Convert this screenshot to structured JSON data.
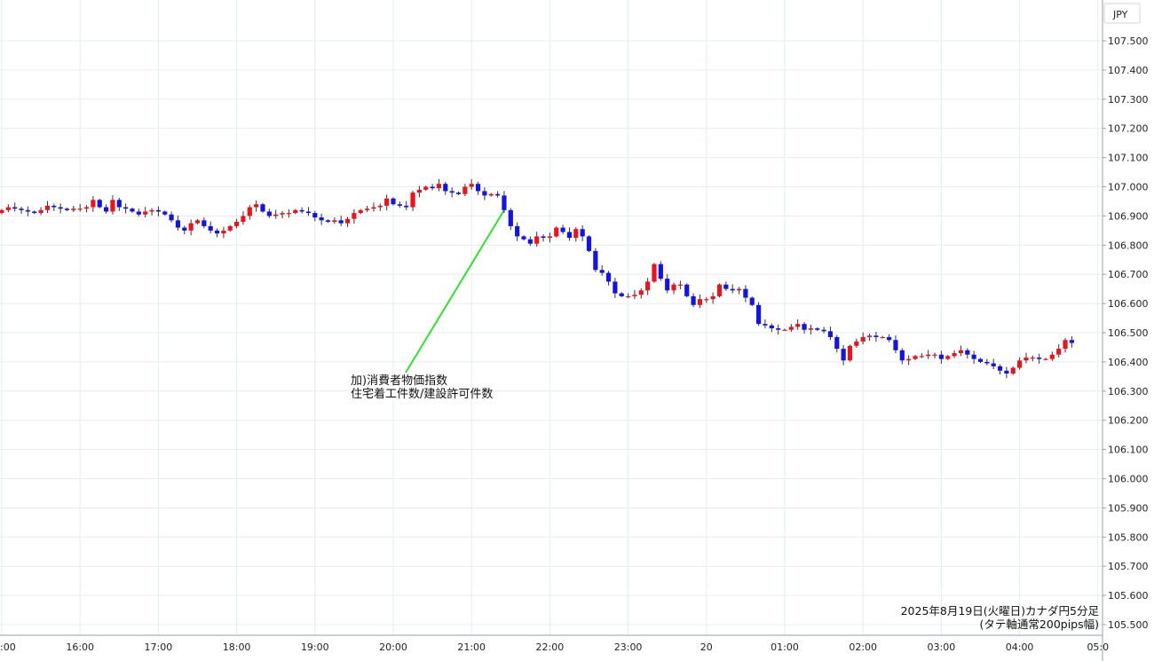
{
  "chart_data": {
    "type": "candlestick",
    "currency_label": "JPY",
    "caption_line1": "2025年8月19日(火曜日)カナダ円5分足",
    "caption_line2": "(タテ軸通常200pips幅)",
    "annotation_line1": "加)消費者物価指数",
    "annotation_line2": "住宅着工件数/建設許可件数",
    "annotation_time_index": 77,
    "annotation_price": 106.92,
    "ylim": [
      105.48,
      107.62
    ],
    "y_ticks": [
      "107.500",
      "107.400",
      "107.300",
      "107.200",
      "107.100",
      "107.000",
      "106.900",
      "106.800",
      "106.700",
      "106.600",
      "106.500",
      "106.400",
      "106.300",
      "106.200",
      "106.100",
      "106.000",
      "105.900",
      "105.800",
      "105.700",
      "105.600",
      "105.500"
    ],
    "x_tick_labels": [
      ":00",
      "16:00",
      "17:00",
      "18:00",
      "19:00",
      "20:00",
      "21:00",
      "22:00",
      "23:00",
      "20",
      "01:00",
      "02:00",
      "03:00",
      "04:00",
      "05:0"
    ],
    "x_tick_index": [
      0,
      12,
      24,
      36,
      48,
      60,
      72,
      84,
      96,
      108,
      120,
      132,
      144,
      156,
      168
    ],
    "up_color": "#e8141e",
    "down_color": "#1414dc",
    "annotation_line_color": "#33dd33",
    "grid_color": "#e6ecef",
    "closes": [
      106.92,
      106.93,
      106.925,
      106.92,
      106.915,
      106.91,
      106.92,
      106.935,
      106.93,
      106.925,
      106.92,
      106.925,
      106.925,
      106.93,
      106.955,
      106.93,
      106.915,
      106.955,
      106.93,
      106.925,
      106.915,
      106.905,
      106.915,
      106.92,
      106.915,
      106.905,
      106.885,
      106.86,
      106.85,
      106.875,
      106.885,
      106.865,
      106.85,
      106.84,
      106.85,
      106.865,
      106.88,
      106.9,
      106.93,
      106.94,
      106.915,
      106.9,
      106.905,
      106.91,
      106.91,
      106.92,
      106.915,
      106.91,
      106.895,
      106.885,
      106.88,
      106.885,
      106.875,
      106.89,
      106.91,
      106.92,
      106.925,
      106.93,
      106.935,
      106.96,
      106.94,
      106.935,
      106.93,
      106.98,
      106.99,
      107.0,
      106.995,
      107.01,
      106.985,
      106.98,
      106.975,
      107.0,
      107.01,
      106.985,
      106.97,
      106.975,
      106.97,
      106.92,
      106.865,
      106.83,
      106.82,
      106.805,
      106.83,
      106.825,
      106.83,
      106.86,
      106.845,
      106.825,
      106.855,
      106.83,
      106.78,
      106.715,
      106.705,
      106.675,
      106.635,
      106.625,
      106.625,
      106.63,
      106.645,
      106.675,
      106.735,
      106.685,
      106.645,
      106.665,
      106.665,
      106.625,
      106.595,
      106.615,
      106.615,
      106.625,
      106.665,
      106.65,
      106.645,
      106.65,
      106.62,
      106.595,
      106.53,
      106.525,
      106.515,
      106.51,
      106.51,
      106.52,
      106.53,
      106.51,
      106.515,
      106.51,
      106.505,
      106.485,
      106.445,
      106.405,
      106.455,
      106.47,
      106.485,
      106.49,
      106.485,
      106.485,
      106.475,
      106.44,
      106.405,
      106.41,
      106.42,
      106.42,
      106.425,
      106.425,
      106.41,
      106.42,
      106.43,
      106.44,
      106.425,
      106.41,
      106.4,
      106.395,
      106.385,
      106.37,
      106.36,
      106.38,
      106.405,
      106.415,
      106.415,
      106.41,
      106.41,
      106.425,
      106.445,
      106.475,
      106.465
    ]
  }
}
